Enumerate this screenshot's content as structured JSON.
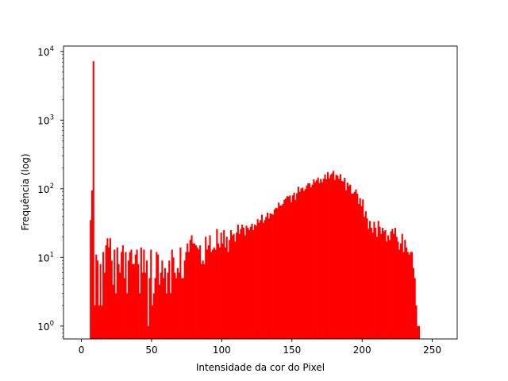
{
  "chart_data": {
    "type": "bar",
    "title": "",
    "xlabel": "Intensidade da cor do Pixel",
    "ylabel": "Frequência (log)",
    "x_ticks": [
      0,
      50,
      100,
      150,
      200,
      250
    ],
    "y_ticks": [
      {
        "value": 1,
        "base": "10",
        "exp": "0"
      },
      {
        "value": 10,
        "base": "10",
        "exp": "1"
      },
      {
        "value": 100,
        "base": "10",
        "exp": "2"
      },
      {
        "value": 1000,
        "base": "10",
        "exp": "3"
      },
      {
        "value": 10000,
        "base": "10",
        "exp": "4"
      }
    ],
    "xlim": [
      -12.75,
      267.75
    ],
    "ylim": [
      0.65,
      12000
    ],
    "y_scale": "log",
    "bin_width": 1,
    "color": "#ff0000",
    "grid": false,
    "legend": "none",
    "bins_start": 6,
    "values": [
      35,
      95,
      7200,
      2,
      11,
      9,
      2,
      8,
      2,
      12,
      6,
      15,
      19,
      14,
      19,
      9,
      4,
      13,
      3,
      14,
      8,
      6,
      12,
      15,
      5,
      12,
      3,
      9,
      12,
      13,
      8,
      8,
      11,
      13,
      8,
      3,
      14,
      6,
      13,
      6,
      9,
      1,
      5,
      13,
      2,
      3,
      5,
      12,
      11,
      4,
      6,
      9,
      5,
      7,
      3,
      6,
      9,
      3,
      13,
      10,
      6,
      5,
      7,
      6,
      14,
      5,
      5,
      9,
      12,
      16,
      12,
      18,
      21,
      16,
      16,
      15,
      14,
      13,
      15,
      8,
      9,
      8,
      20,
      13,
      15,
      21,
      12,
      13,
      14,
      13,
      26,
      16,
      14,
      23,
      16,
      25,
      14,
      20,
      12,
      18,
      25,
      21,
      22,
      17,
      23,
      30,
      22,
      26,
      30,
      27,
      21,
      29,
      27,
      25,
      28,
      31,
      25,
      30,
      29,
      36,
      32,
      35,
      42,
      32,
      35,
      39,
      45,
      37,
      44,
      43,
      42,
      50,
      53,
      52,
      63,
      57,
      57,
      60,
      69,
      72,
      78,
      77,
      80,
      64,
      80,
      88,
      69,
      86,
      107,
      90,
      101,
      104,
      93,
      99,
      112,
      120,
      120,
      105,
      115,
      137,
      125,
      133,
      146,
      121,
      139,
      124,
      140,
      162,
      137,
      175,
      142,
      160,
      168,
      182,
      135,
      160,
      155,
      140,
      163,
      130,
      127,
      145,
      95,
      123,
      110,
      115,
      85,
      85,
      90,
      98,
      85,
      60,
      73,
      56,
      70,
      39,
      47,
      37,
      26,
      34,
      27,
      23,
      33,
      27,
      20,
      34,
      28,
      22,
      27,
      24,
      25,
      17,
      21,
      18,
      24,
      26,
      22,
      27,
      20,
      17,
      13,
      16,
      22,
      12,
      18,
      14,
      12,
      11,
      12,
      12,
      7,
      5,
      2,
      1,
      1
    ],
    "ax_box": {
      "frame_color": "#000000"
    }
  }
}
